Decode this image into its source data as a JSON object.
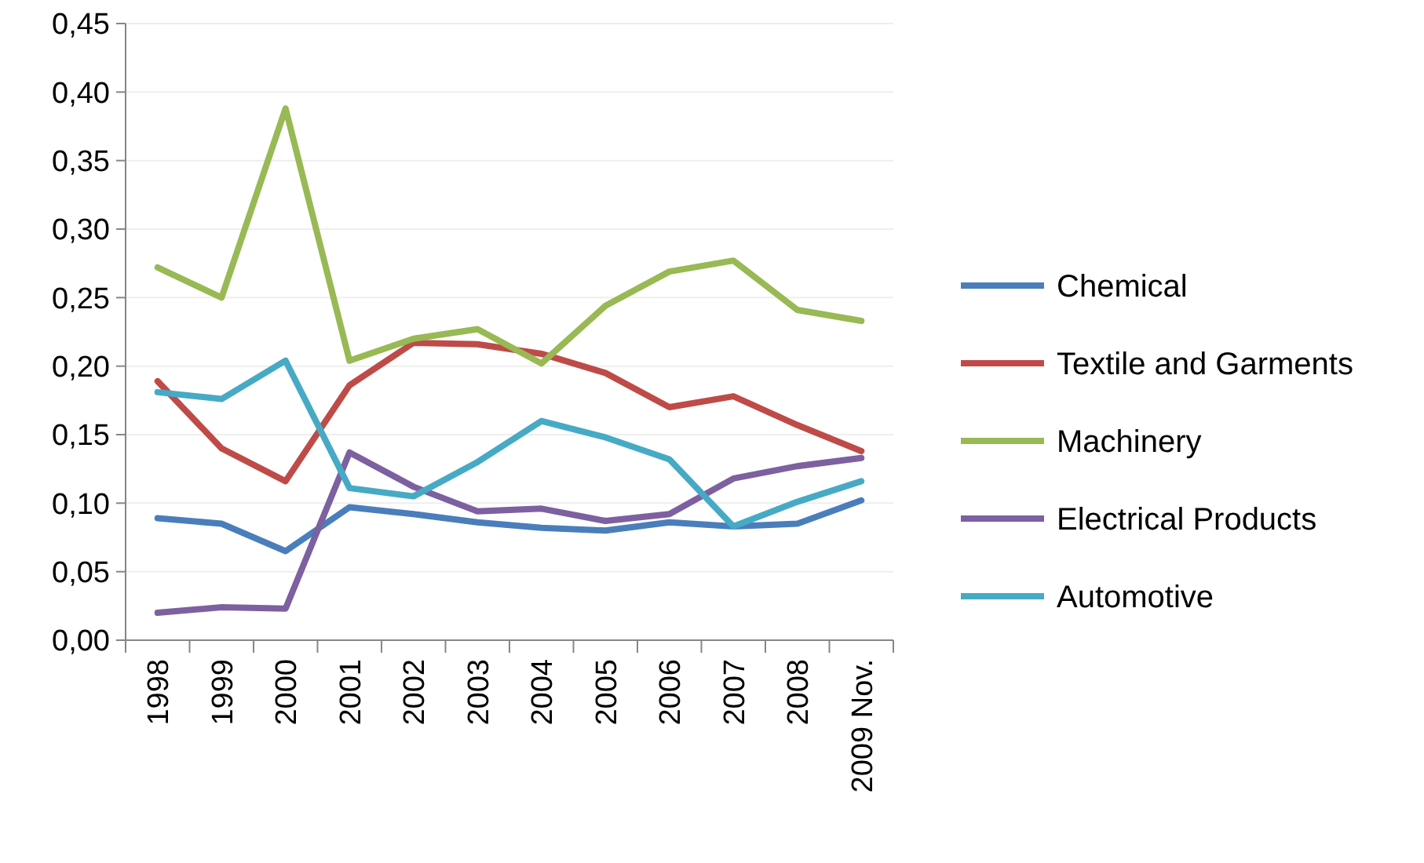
{
  "chart_data": {
    "type": "line",
    "categories": [
      "1998",
      "1999",
      "2000",
      "2001",
      "2002",
      "2003",
      "2004",
      "2005",
      "2006",
      "2007",
      "2008",
      "2009 Nov."
    ],
    "series": [
      {
        "name": "Chemical",
        "color": "#4a7ebb",
        "values": [
          0.089,
          0.085,
          0.065,
          0.097,
          0.092,
          0.086,
          0.082,
          0.08,
          0.086,
          0.083,
          0.085,
          0.102
        ]
      },
      {
        "name": "Textile and Garments",
        "color": "#be4b48",
        "values": [
          0.189,
          0.14,
          0.116,
          0.186,
          0.217,
          0.216,
          0.209,
          0.195,
          0.17,
          0.178,
          0.157,
          0.138
        ]
      },
      {
        "name": "Machinery",
        "color": "#98b954",
        "values": [
          0.272,
          0.25,
          0.388,
          0.204,
          0.22,
          0.227,
          0.202,
          0.244,
          0.269,
          0.277,
          0.241,
          0.233
        ]
      },
      {
        "name": "Electrical Products",
        "color": "#7d60a0",
        "values": [
          0.02,
          0.024,
          0.023,
          0.137,
          0.112,
          0.094,
          0.096,
          0.087,
          0.092,
          0.118,
          0.127,
          0.133
        ]
      },
      {
        "name": "Automotive",
        "color": "#46aac5",
        "values": [
          0.181,
          0.176,
          0.204,
          0.111,
          0.105,
          0.13,
          0.16,
          0.148,
          0.132,
          0.083,
          0.101,
          0.116
        ]
      }
    ],
    "ylim": [
      0,
      0.45
    ],
    "yticks": [
      {
        "value": 0,
        "label": "0,00"
      },
      {
        "value": 0.05,
        "label": "0,05"
      },
      {
        "value": 0.1,
        "label": "0,10"
      },
      {
        "value": 0.15,
        "label": "0,15"
      },
      {
        "value": 0.2,
        "label": "0,20"
      },
      {
        "value": 0.25,
        "label": "0,25"
      },
      {
        "value": 0.3,
        "label": "0,30"
      },
      {
        "value": 0.35,
        "label": "0,35"
      },
      {
        "value": 0.4,
        "label": "0,40"
      },
      {
        "value": 0.45,
        "label": "0,45"
      }
    ],
    "grid": "y",
    "legend": "right",
    "marker": "none",
    "line_style": "solid"
  }
}
